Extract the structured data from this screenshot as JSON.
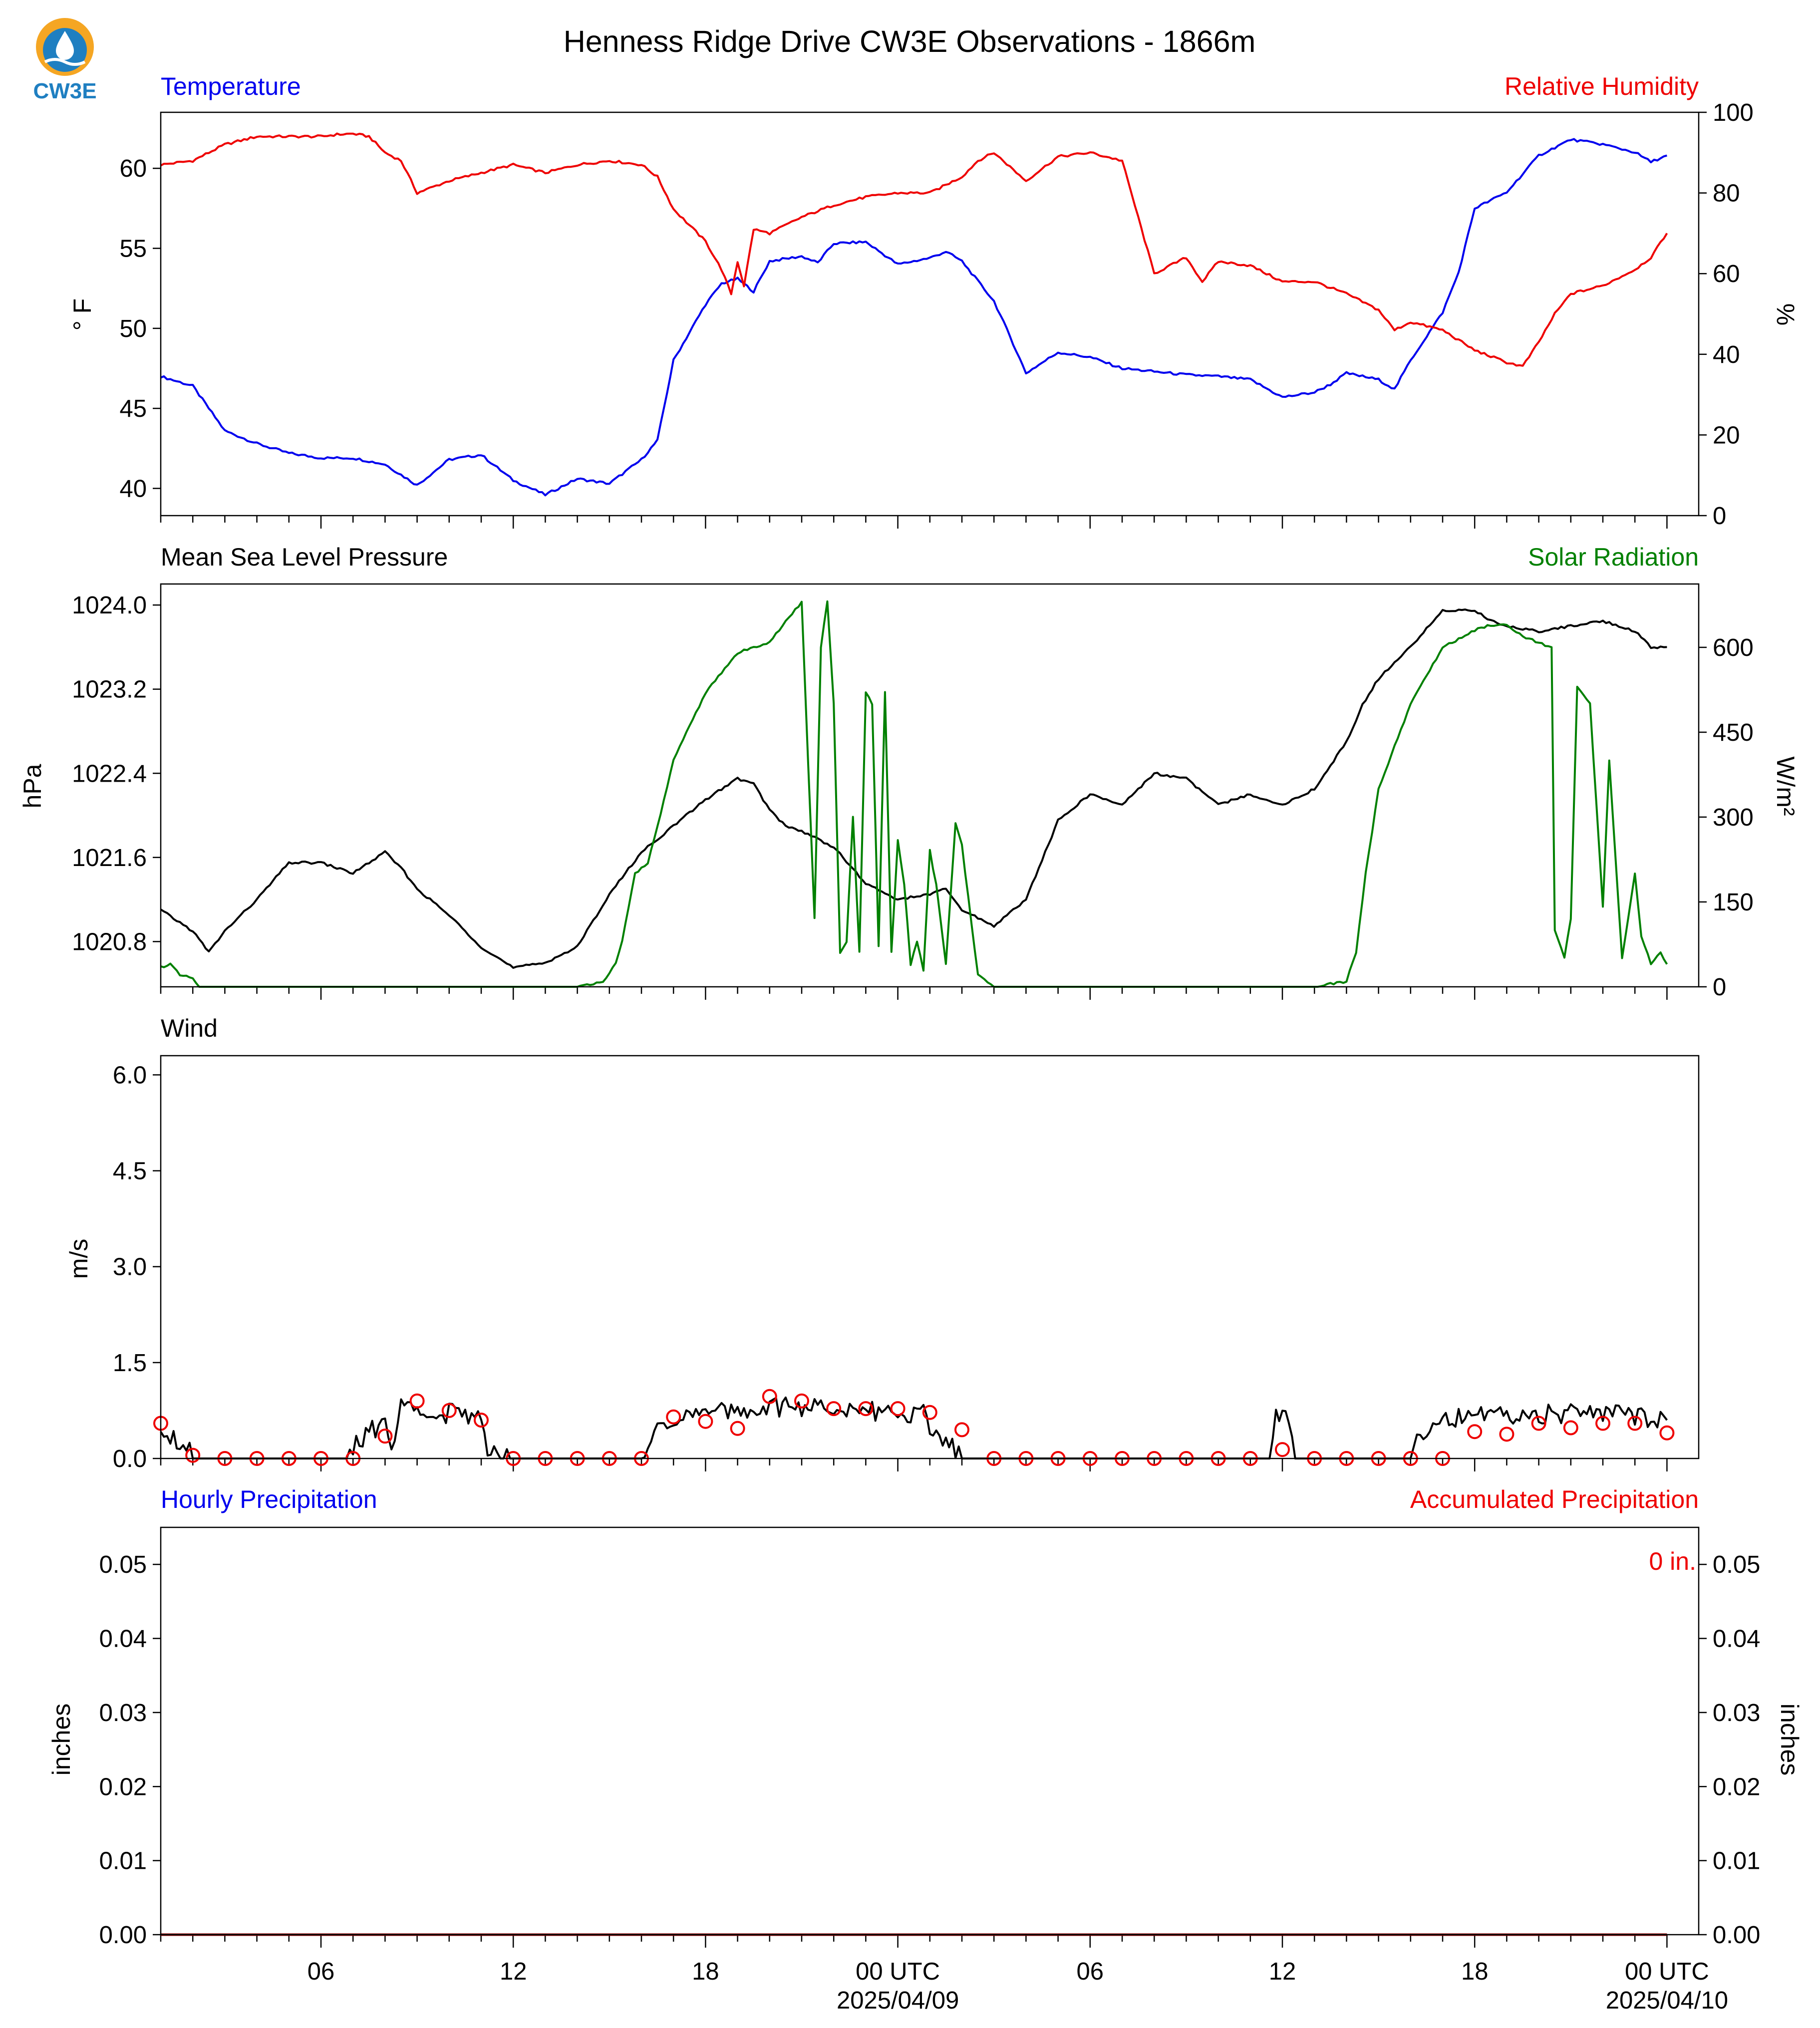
{
  "title": "Henness Ridge Drive CW3E Observations - 1866m",
  "logo": {
    "text": "CW3E",
    "colors": {
      "orange": "#f5a623",
      "blue": "#1f7fc1"
    }
  },
  "time_axis": {
    "start": "2025-04-08T01:00Z",
    "end": "2025-04-10T01:00Z",
    "major_tick_labels": [
      "06",
      "12",
      "18",
      "00 UTC",
      "06",
      "12",
      "18",
      "00 UTC"
    ],
    "major_tick_times": [
      "2025-04-08T06:00Z",
      "2025-04-08T12:00Z",
      "2025-04-08T18:00Z",
      "2025-04-09T00:00Z",
      "2025-04-09T06:00Z",
      "2025-04-09T12:00Z",
      "2025-04-09T18:00Z",
      "2025-04-10T00:00Z"
    ],
    "date_labels": [
      {
        "time": "2025-04-09T00:00Z",
        "text": "2025/04/09"
      },
      {
        "time": "2025-04-10T00:00Z",
        "text": "2025/04/10"
      }
    ]
  },
  "colors": {
    "blue": "#0000ee",
    "red": "#ee0000",
    "green": "#008000",
    "black": "#000000"
  },
  "chart_data": [
    {
      "type": "line",
      "panel": "temperature",
      "left_title": "Temperature",
      "right_title": "Relative Humidity",
      "ylabel": "° F",
      "ylabel2": "%",
      "ylim": [
        38.3,
        63.5
      ],
      "yticks": [
        40,
        45,
        50,
        55,
        60
      ],
      "ylim2": [
        0,
        100
      ],
      "yticks2": [
        0,
        20,
        40,
        60,
        80,
        100
      ],
      "series": [
        {
          "axis": "left",
          "color": "#0000ee",
          "hours": [
            0,
            1,
            2,
            3,
            4,
            5,
            6,
            7,
            8,
            9,
            10,
            11,
            12,
            13,
            14,
            15,
            15.5,
            16,
            17,
            17.5,
            18,
            18.5,
            19,
            20,
            20.5,
            21,
            22,
            23,
            24,
            24.5,
            25,
            26,
            26.5,
            27,
            28,
            29,
            30,
            31,
            32,
            33,
            34,
            35,
            36,
            36.5,
            37,
            38,
            38.5,
            39,
            39.5,
            40,
            40.5,
            41,
            42,
            43,
            44,
            45,
            46,
            46.5,
            47
          ],
          "values": [
            47.0,
            46.4,
            43.6,
            42.8,
            42.2,
            41.9,
            41.9,
            41.5,
            40.2,
            41.8,
            42.1,
            40.5,
            39.6,
            40.6,
            40.3,
            41.8,
            43.0,
            48.0,
            51.5,
            52.8,
            53.1,
            52.3,
            54.2,
            54.5,
            54.1,
            55.3,
            55.4,
            54.0,
            54.4,
            54.8,
            54.2,
            51.7,
            49.5,
            47.2,
            48.5,
            48.2,
            47.5,
            47.3,
            47.1,
            47.0,
            46.8,
            45.7,
            46.0,
            46.5,
            47.2,
            46.8,
            46.2,
            48.0,
            49.5,
            51.0,
            53.5,
            57.5,
            58.5,
            60.8,
            61.8,
            61.5,
            61.0,
            60.4,
            60.8
          ]
        },
        {
          "axis": "right",
          "color": "#ee0000",
          "hours": [
            0,
            1,
            2,
            3,
            4,
            5,
            5.5,
            6,
            6.5,
            7,
            7.5,
            8,
            9,
            10,
            11,
            12,
            13,
            14,
            15,
            15.5,
            16,
            17,
            17.5,
            17.8,
            18,
            18.2,
            18.5,
            19,
            20,
            21,
            22,
            23,
            24,
            25,
            25.5,
            26,
            27,
            27.5,
            28,
            29,
            30,
            31,
            32,
            32.5,
            33,
            34,
            35,
            36,
            37,
            38,
            38.5,
            39,
            40,
            41,
            42,
            42.5,
            43,
            43.5,
            44,
            45,
            46,
            46.5,
            47
          ],
          "values": [
            87,
            88,
            92,
            94,
            94,
            94,
            94.5,
            94.7,
            94,
            90,
            88,
            80,
            83,
            85,
            87,
            85,
            87,
            88,
            87,
            84,
            76,
            68,
            61,
            55,
            63,
            57,
            71,
            70,
            74,
            77,
            79,
            80,
            80,
            84,
            88,
            90,
            83,
            86,
            89,
            90,
            88,
            60,
            64,
            58,
            63,
            62,
            58,
            58,
            55,
            51,
            46,
            48,
            46,
            41,
            38,
            37,
            43,
            50,
            55,
            57,
            61,
            64,
            70
          ]
        }
      ]
    },
    {
      "type": "line",
      "panel": "pressure",
      "left_title": "Mean Sea Level Pressure",
      "right_title": "Solar Radiation",
      "ylabel": "hPa",
      "ylabel2": "W/m²",
      "ylim": [
        1020.37,
        1024.2
      ],
      "yticks": [
        1020.8,
        1021.6,
        1022.4,
        1023.2,
        1024.0
      ],
      "ytick_labels": [
        "1020.8",
        "1021.6",
        "1022.4",
        "1023.2",
        "1024.0"
      ],
      "ylim2": [
        0,
        712
      ],
      "yticks2": [
        0,
        150,
        300,
        450,
        600
      ],
      "series": [
        {
          "axis": "left",
          "color": "#000000",
          "hours": [
            0,
            0.5,
            1,
            1.5,
            2,
            3,
            4,
            5,
            6,
            7,
            7.5,
            8,
            9,
            10,
            11,
            12,
            13,
            14,
            15,
            16,
            17,
            18,
            18.5,
            19,
            19.5,
            20,
            21,
            22,
            23,
            24,
            24.5,
            25,
            26,
            27,
            28,
            29,
            30,
            31,
            32,
            33,
            34,
            35,
            36,
            37,
            37.5,
            38,
            39,
            40,
            41,
            41.5,
            42,
            43,
            44,
            45,
            46,
            46.5,
            47
          ],
          "values": [
            1021.1,
            1021.0,
            1020.9,
            1020.7,
            1020.9,
            1021.2,
            1021.55,
            1021.55,
            1021.45,
            1021.65,
            1021.5,
            1021.3,
            1021.05,
            1020.75,
            1020.55,
            1020.6,
            1020.75,
            1021.25,
            1021.65,
            1021.9,
            1022.15,
            1022.35,
            1022.3,
            1022.05,
            1021.9,
            1021.85,
            1021.7,
            1021.35,
            1021.2,
            1021.25,
            1021.3,
            1021.1,
            1020.95,
            1021.2,
            1021.95,
            1022.2,
            1022.1,
            1022.4,
            1022.35,
            1022.1,
            1022.2,
            1022.1,
            1022.25,
            1022.7,
            1023.05,
            1023.3,
            1023.6,
            1023.95,
            1023.95,
            1023.85,
            1023.8,
            1023.75,
            1023.8,
            1023.85,
            1023.75,
            1023.6,
            1023.6
          ]
        },
        {
          "axis": "right",
          "color": "#008000",
          "hours": [
            0,
            0.3,
            0.6,
            1,
            1.2,
            13,
            13.8,
            14.2,
            14.4,
            14.8,
            15.2,
            15.4,
            16,
            17,
            18,
            19,
            20,
            20.4,
            20.6,
            20.8,
            21,
            21.2,
            21.4,
            21.6,
            21.8,
            22,
            22.2,
            22.4,
            22.6,
            22.8,
            23,
            23.2,
            23.4,
            23.6,
            23.8,
            24,
            24.2,
            24.5,
            24.8,
            25,
            25.5,
            26,
            36,
            37,
            37.3,
            37.6,
            38,
            39,
            40,
            41,
            41.5,
            42,
            42.5,
            43.4,
            43.5,
            43.8,
            44,
            44.2,
            44.6,
            45,
            45.2,
            45.6,
            46,
            46.2,
            46.5,
            46.8,
            47
          ],
          "values": [
            35,
            40,
            20,
            15,
            0,
            0,
            10,
            40,
            80,
            200,
            220,
            260,
            400,
            520,
            590,
            610,
            680,
            120,
            600,
            680,
            500,
            60,
            80,
            300,
            60,
            520,
            500,
            70,
            520,
            60,
            260,
            180,
            40,
            80,
            30,
            240,
            180,
            40,
            290,
            250,
            20,
            0,
            0,
            10,
            60,
            200,
            350,
            500,
            600,
            630,
            640,
            640,
            620,
            600,
            100,
            50,
            120,
            530,
            500,
            140,
            400,
            50,
            200,
            90,
            40,
            60,
            40
          ]
        }
      ]
    },
    {
      "type": "line",
      "panel": "wind",
      "left_title": "Wind",
      "ylabel": "m/s",
      "ylim": [
        0,
        6.3
      ],
      "yticks": [
        0.0,
        1.5,
        3.0,
        4.5,
        6.0
      ],
      "ytick_labels": [
        "0.0",
        "1.5",
        "3.0",
        "4.5",
        "6.0"
      ],
      "series": [
        {
          "type": "line",
          "color": "#000000",
          "hours": [
            0,
            0.5,
            0.8,
            1,
            1.2,
            5.8,
            6,
            6.5,
            7,
            7.2,
            7.5,
            8,
            8.5,
            9,
            9.5,
            10,
            10.2,
            10.5,
            11,
            15,
            15.3,
            15.5,
            16,
            17,
            18,
            19,
            20,
            21,
            22,
            23,
            23.8,
            24,
            24.5,
            24.8,
            25,
            34.6,
            34.8,
            35.2,
            35.3,
            35.4,
            39,
            39.2,
            39.5,
            40,
            41,
            42,
            43,
            44,
            45,
            46,
            47
          ],
          "values": [
            0.5,
            0.3,
            0.2,
            0.05,
            0,
            0,
            0.15,
            0.4,
            0.6,
            0.1,
            0.8,
            0.9,
            0.6,
            0.7,
            0.7,
            0.6,
            0.2,
            0.1,
            0,
            0,
            0.3,
            0.6,
            0.6,
            0.7,
            0.75,
            0.8,
            0.8,
            0.8,
            0.75,
            0.7,
            0.7,
            0.5,
            0.3,
            0.1,
            0,
            0,
            0.65,
            0.6,
            0.5,
            0,
            0,
            0.35,
            0.5,
            0.6,
            0.65,
            0.65,
            0.7,
            0.7,
            0.7,
            0.65,
            0.6
          ]
        },
        {
          "type": "scatter",
          "marker": "circle-open",
          "color": "#ee0000",
          "hours": [
            0,
            1,
            2,
            3,
            4,
            5,
            6,
            7,
            8,
            9,
            10,
            11,
            12,
            13,
            14,
            15,
            16,
            17,
            18,
            19,
            20,
            21,
            22,
            23,
            24,
            25,
            26,
            27,
            28,
            29,
            30,
            31,
            32,
            33,
            34,
            35,
            36,
            37,
            38,
            39,
            40,
            41,
            42,
            43,
            44,
            45,
            46,
            47
          ],
          "values": [
            0.55,
            0.05,
            0.0,
            0.0,
            0.0,
            0.0,
            0.0,
            0.35,
            0.9,
            0.75,
            0.6,
            0.0,
            0.0,
            0.0,
            0.0,
            0.0,
            0.65,
            0.58,
            0.47,
            0.97,
            0.9,
            0.78,
            0.78,
            0.78,
            0.72,
            0.45,
            0.0,
            0.0,
            0.0,
            0.0,
            0.0,
            0.0,
            0.0,
            0.0,
            0.0,
            0.14,
            0.0,
            0.0,
            0.0,
            0.0,
            0.0,
            0.42,
            0.38,
            0.55,
            0.48,
            0.55,
            0.55,
            0.4
          ]
        }
      ]
    },
    {
      "type": "line",
      "panel": "precipitation",
      "left_title": "Hourly Precipitation",
      "right_title": "Accumulated Precipitation",
      "ylabel": "inches",
      "ylabel2": "inches",
      "ylim": [
        0,
        0.055
      ],
      "yticks": [
        0.0,
        0.01,
        0.02,
        0.03,
        0.04,
        0.05
      ],
      "ytick_labels": [
        "0.00",
        "0.01",
        "0.02",
        "0.03",
        "0.04",
        "0.05"
      ],
      "annotation": "0 in.",
      "series": [
        {
          "axis": "left",
          "color": "#0000ee",
          "hours": [
            0,
            47
          ],
          "values": [
            0,
            0
          ]
        },
        {
          "axis": "right",
          "color": "#8b0000",
          "hours": [
            0,
            47
          ],
          "values": [
            0,
            0
          ]
        }
      ]
    }
  ]
}
